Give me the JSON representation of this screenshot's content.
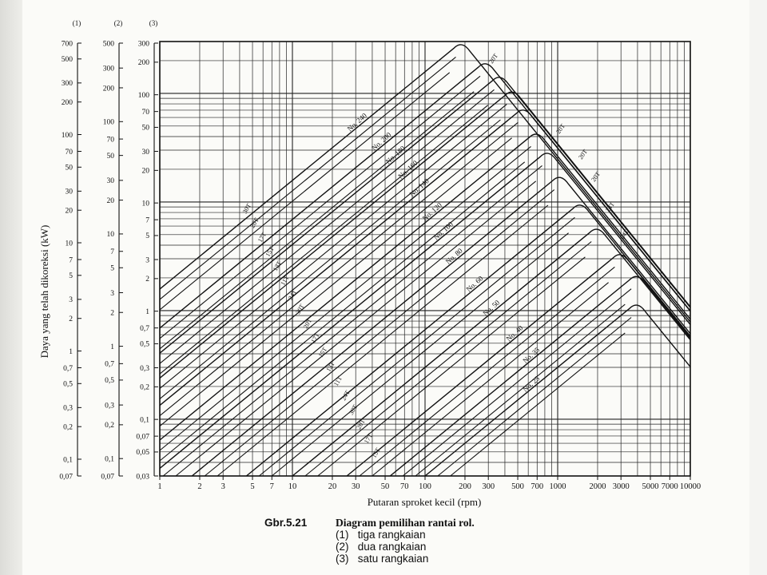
{
  "figure": {
    "number": "Gbr.5.21",
    "title": "Diagram pemilihan rantai rol.",
    "legend": [
      {
        "marker": "(1)",
        "text": "tiga rangkaian"
      },
      {
        "marker": "(2)",
        "text": "dua rangkaian"
      },
      {
        "marker": "(3)",
        "text": "satu rangkaian"
      }
    ]
  },
  "chart_data": {
    "type": "nomogram",
    "xlabel": "Putaran sproket kecil (rpm)",
    "ylabel": "Daya yang telah dikoreksi (kW)",
    "x_scale": "log",
    "xlim": [
      1,
      10000
    ],
    "x_ticks": [
      "1",
      "2",
      "3",
      "5",
      "7",
      "10",
      "20",
      "30",
      "50",
      "70",
      "100",
      "200",
      "300",
      "500",
      "700",
      "1000",
      "2000",
      "3000",
      "5000",
      "7000",
      "10000"
    ],
    "y_scale": "log",
    "grid": true,
    "y_axes": [
      {
        "header": "(1)",
        "ticks": [
          "700",
          "500",
          "300",
          "200",
          "100",
          "70",
          "50",
          "30",
          "20",
          "10",
          "7",
          "5",
          "3",
          "2",
          "1",
          "0,7",
          "0,5",
          "0,3",
          "0,2",
          "0,1",
          "0,07"
        ],
        "values": [
          700,
          500,
          300,
          200,
          100,
          70,
          50,
          30,
          20,
          10,
          7,
          5,
          3,
          2,
          1,
          0.7,
          0.5,
          0.3,
          0.2,
          0.1,
          0.07
        ]
      },
      {
        "header": "(2)",
        "ticks": [
          "500",
          "300",
          "200",
          "100",
          "70",
          "50",
          "30",
          "20",
          "10",
          "7",
          "5",
          "3",
          "2",
          "1",
          "0,7",
          "0,5",
          "0,3",
          "0,2",
          "0,1",
          "0,07"
        ],
        "values": [
          500,
          300,
          200,
          100,
          70,
          50,
          30,
          20,
          10,
          7,
          5,
          3,
          2,
          1,
          0.7,
          0.5,
          0.3,
          0.2,
          0.1,
          0.07
        ]
      },
      {
        "header": "(3)",
        "ticks": [
          "300",
          "200",
          "100",
          "70",
          "50",
          "30",
          "20",
          "10",
          "7",
          "5",
          "3",
          "2",
          "1",
          "0,7",
          "0,5",
          "0,3",
          "0,2",
          "0,1",
          "0,07",
          "0,05",
          "0,03"
        ],
        "values": [
          300,
          200,
          100,
          70,
          50,
          30,
          20,
          10,
          7,
          5,
          3,
          2,
          1,
          0.7,
          0.5,
          0.3,
          0.2,
          0.1,
          0.07,
          0.05,
          0.03
        ]
      }
    ],
    "ylim": [
      0.03,
      300
    ],
    "series": [
      {
        "name": "No. 240",
        "peak_rpm": 190,
        "peak_kw": 300
      },
      {
        "name": "No. 200",
        "peak_rpm": 290,
        "peak_kw": 200
      },
      {
        "name": "No. 180",
        "peak_rpm": 370,
        "peak_kw": 150
      },
      {
        "name": "No. 160",
        "peak_rpm": 460,
        "peak_kw": 110
      },
      {
        "name": "No. 140",
        "peak_rpm": 560,
        "peak_kw": 75
      },
      {
        "name": "No. 120",
        "peak_rpm": 700,
        "peak_kw": 45
      },
      {
        "name": "No. 100",
        "peak_rpm": 850,
        "peak_kw": 30
      },
      {
        "name": "No. 80",
        "peak_rpm": 1050,
        "peak_kw": 18
      },
      {
        "name": "No. 60",
        "peak_rpm": 1500,
        "peak_kw": 10
      },
      {
        "name": "No. 50",
        "peak_rpm": 2000,
        "peak_kw": 6
      },
      {
        "name": "No. 40",
        "peak_rpm": 3000,
        "peak_kw": 3.5
      },
      {
        "name": "No. 35",
        "peak_rpm": 4000,
        "peak_kw": 2.2
      },
      {
        "name": "No. 25",
        "peak_rpm": 4000,
        "peak_kw": 1.2
      }
    ],
    "teeth_labels": [
      "30T",
      "20T",
      "17T",
      "15T",
      "13T",
      "11T",
      "24T"
    ],
    "right_teeth_labels": [
      "20T",
      "20T",
      "20T",
      "20T",
      "24T",
      "24T"
    ]
  }
}
